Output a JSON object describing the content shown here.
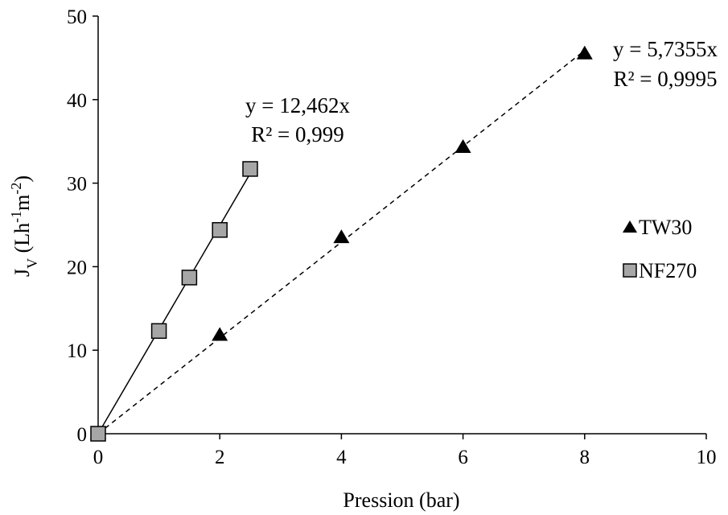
{
  "chart_data": {
    "type": "scatter",
    "xlabel": "Pression (bar)",
    "ylabel": {
      "main": "J",
      "sub": "V",
      "unit_open": " (Lh",
      "exp1": "-1",
      "unit_mid": "m",
      "exp2": "-2",
      "unit_close": ")"
    },
    "xlim": [
      0,
      10
    ],
    "ylim": [
      0,
      50
    ],
    "xticks": [
      0,
      2,
      4,
      6,
      8,
      10
    ],
    "yticks": [
      0,
      10,
      20,
      30,
      40,
      50
    ],
    "grid": false,
    "legend_position": "right",
    "series": [
      {
        "name": "TW30",
        "marker": "triangle",
        "color": "#000000",
        "x": [
          0,
          2,
          4,
          6,
          8
        ],
        "y": [
          0,
          11.8,
          23.5,
          34.3,
          45.5
        ],
        "trendline": {
          "slope": 5.7355,
          "x_range": [
            0,
            8
          ],
          "style": "dashed",
          "equation": "y = 5,7355x",
          "r2": "R² = 0,9995"
        }
      },
      {
        "name": "NF270",
        "marker": "square",
        "color": "#a6a6a6",
        "x": [
          0,
          1,
          1.5,
          2,
          2.5
        ],
        "y": [
          0,
          12.3,
          18.7,
          24.4,
          31.7
        ],
        "trendline": {
          "slope": 12.462,
          "x_range": [
            0,
            2.5
          ],
          "style": "solid",
          "equation": "y = 12,462x",
          "r2": "R² = 0,999"
        }
      }
    ]
  }
}
